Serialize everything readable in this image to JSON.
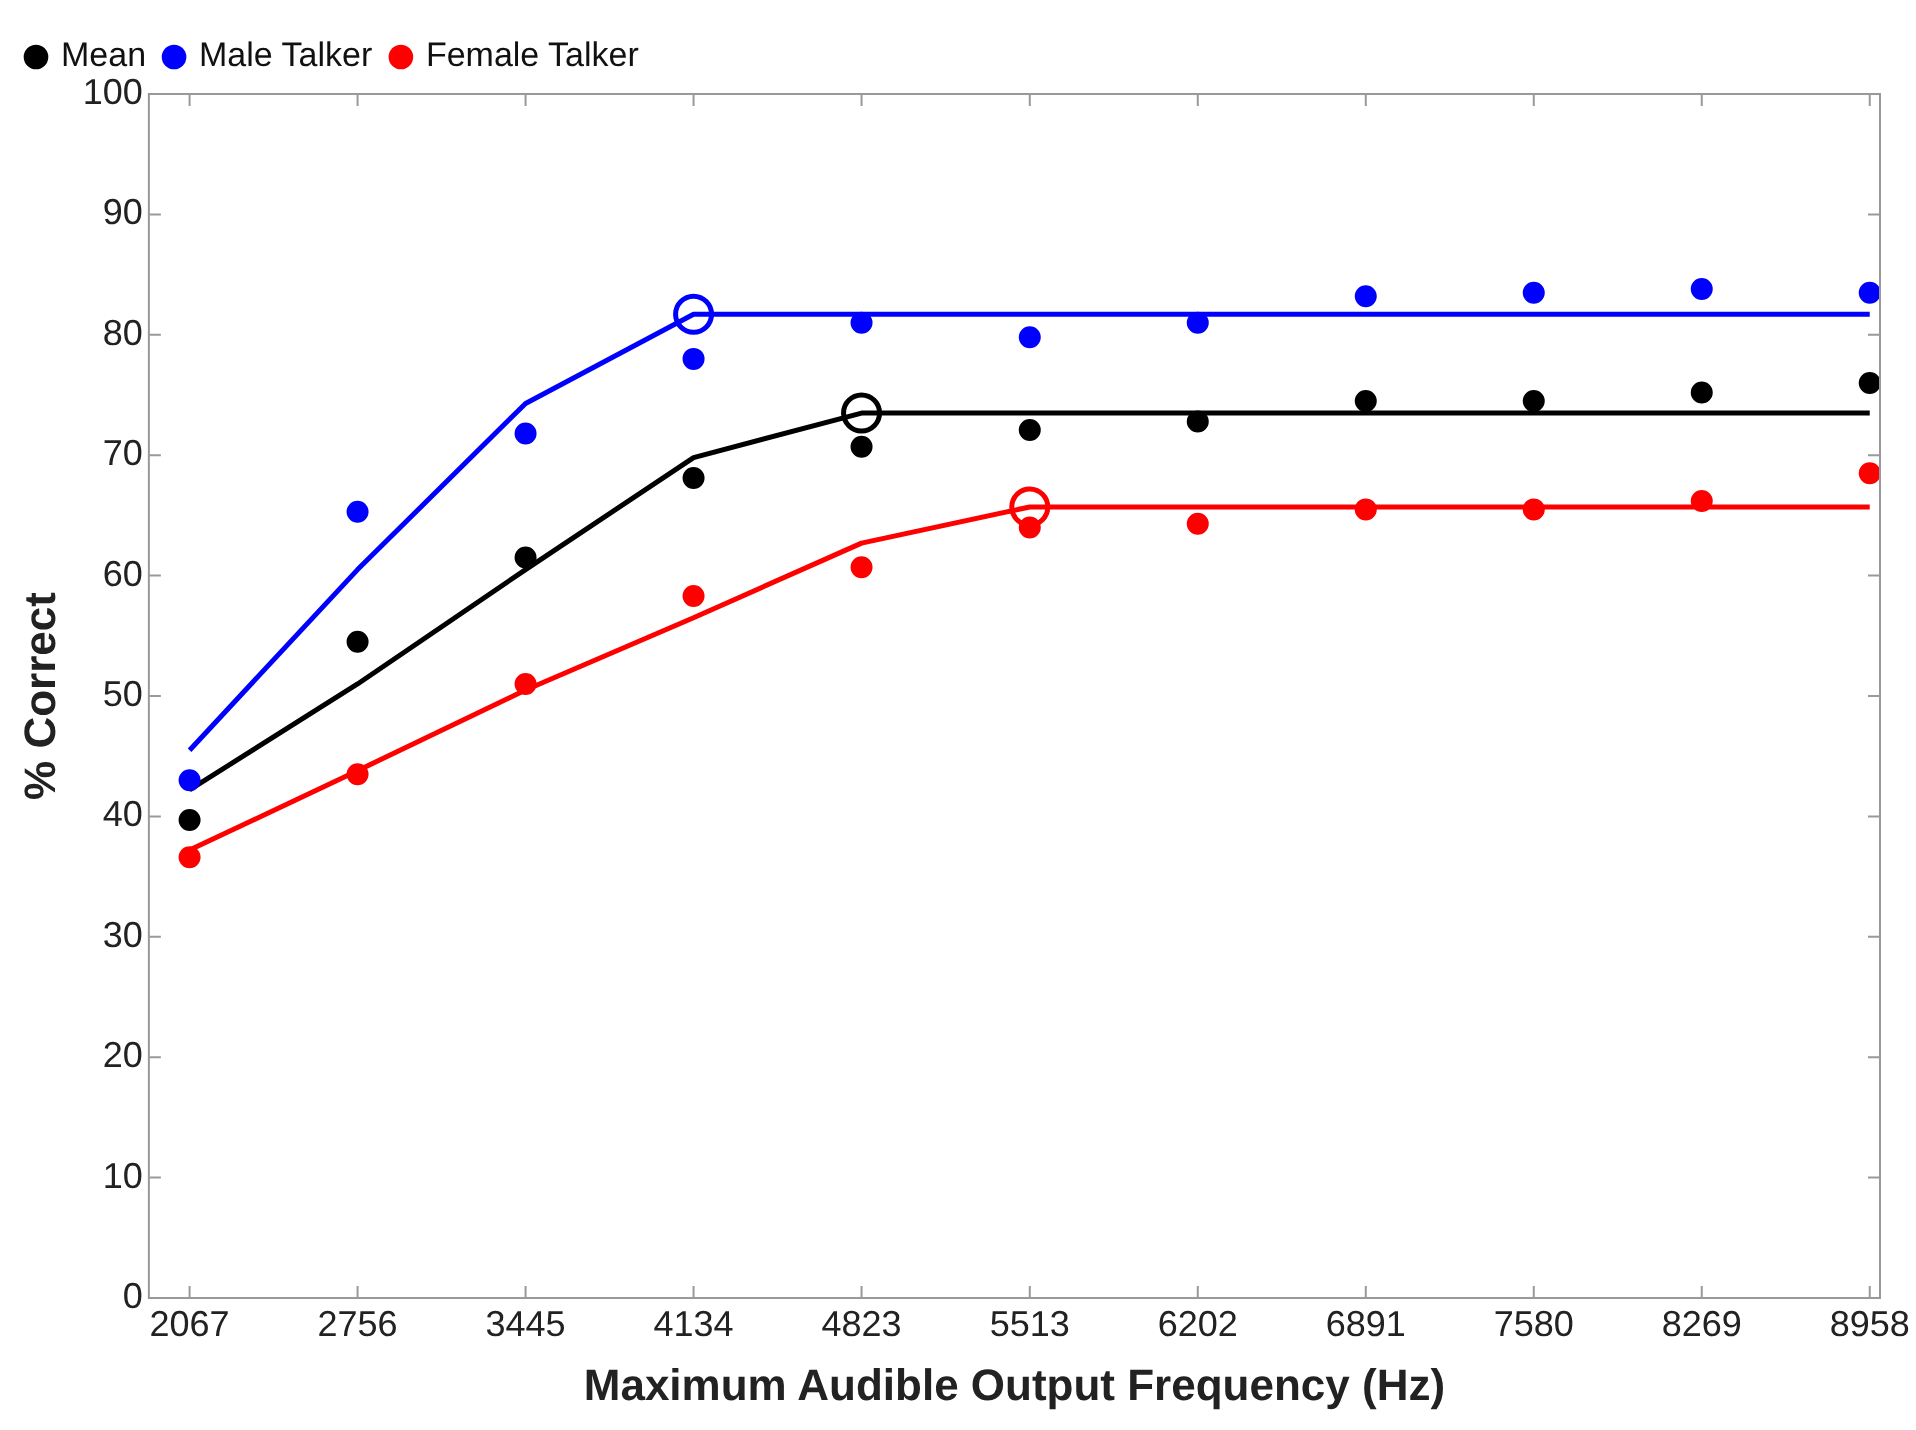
{
  "chart_data": {
    "type": "scatter",
    "xlabel": "Maximum Audible Output Frequency (Hz)",
    "ylabel": "% Correct",
    "x": [
      2067,
      2756,
      3445,
      4134,
      4823,
      5513,
      6202,
      6891,
      7580,
      8269,
      8958
    ],
    "xlim": [
      1900,
      9000
    ],
    "xticks": [
      2067,
      2756,
      3445,
      4134,
      4823,
      5513,
      6202,
      6891,
      7580,
      8269,
      8958
    ],
    "ylim": [
      0,
      100
    ],
    "yticks": [
      0,
      10,
      20,
      30,
      40,
      50,
      60,
      70,
      80,
      90,
      100
    ],
    "grid": false,
    "legend": "top left",
    "marker": "circle",
    "series": [
      {
        "name": "Mean",
        "color": "#000000",
        "values": [
          39.7,
          54.5,
          61.5,
          68.1,
          70.7,
          72.1,
          72.8,
          74.5,
          74.5,
          75.2,
          76
        ]
      },
      {
        "name": "Male Talker",
        "color": "#0000ff",
        "values": [
          43,
          65.3,
          71.8,
          78,
          81,
          79.8,
          81,
          83.2,
          83.5,
          83.8,
          83.5
        ]
      },
      {
        "name": "Female Talker",
        "color": "#ff0000",
        "values": [
          36.6,
          43.5,
          51,
          58.3,
          60.7,
          64,
          64.3,
          65.5,
          65.5,
          66.2,
          68.5
        ]
      },
      {
        "type": "line",
        "marker": "none",
        "color": "#000000",
        "values": [
          42.2,
          51,
          60.5,
          69.8,
          73.5,
          73.5,
          73.5,
          73.5,
          73.5,
          73.5,
          73.5
        ]
      },
      {
        "type": "line",
        "marker": "none",
        "color": "#0000ff",
        "values": [
          45.5,
          60.5,
          74.3,
          81.7,
          81.7,
          81.7,
          81.7,
          81.7,
          81.7,
          81.7,
          81.7
        ]
      },
      {
        "type": "line",
        "marker": "none",
        "color": "#ff0000",
        "values": [
          37.2,
          43.8,
          50.5,
          56.5,
          62.7,
          65.7,
          65.7,
          65.7,
          65.7,
          65.7,
          65.7
        ]
      },
      {
        "type": "scatter",
        "marker": "circle",
        "color": "#000000",
        "x": [
          4823
        ],
        "values": [
          73.5
        ]
      },
      {
        "type": "scatter",
        "marker": "circle",
        "color": "#0000ff",
        "x": [
          4134
        ],
        "values": [
          81.7
        ]
      },
      {
        "type": "scatter",
        "marker": "circle",
        "color": "#ff0000",
        "x": [
          5513
        ],
        "values": [
          65.7
        ]
      }
    ]
  }
}
